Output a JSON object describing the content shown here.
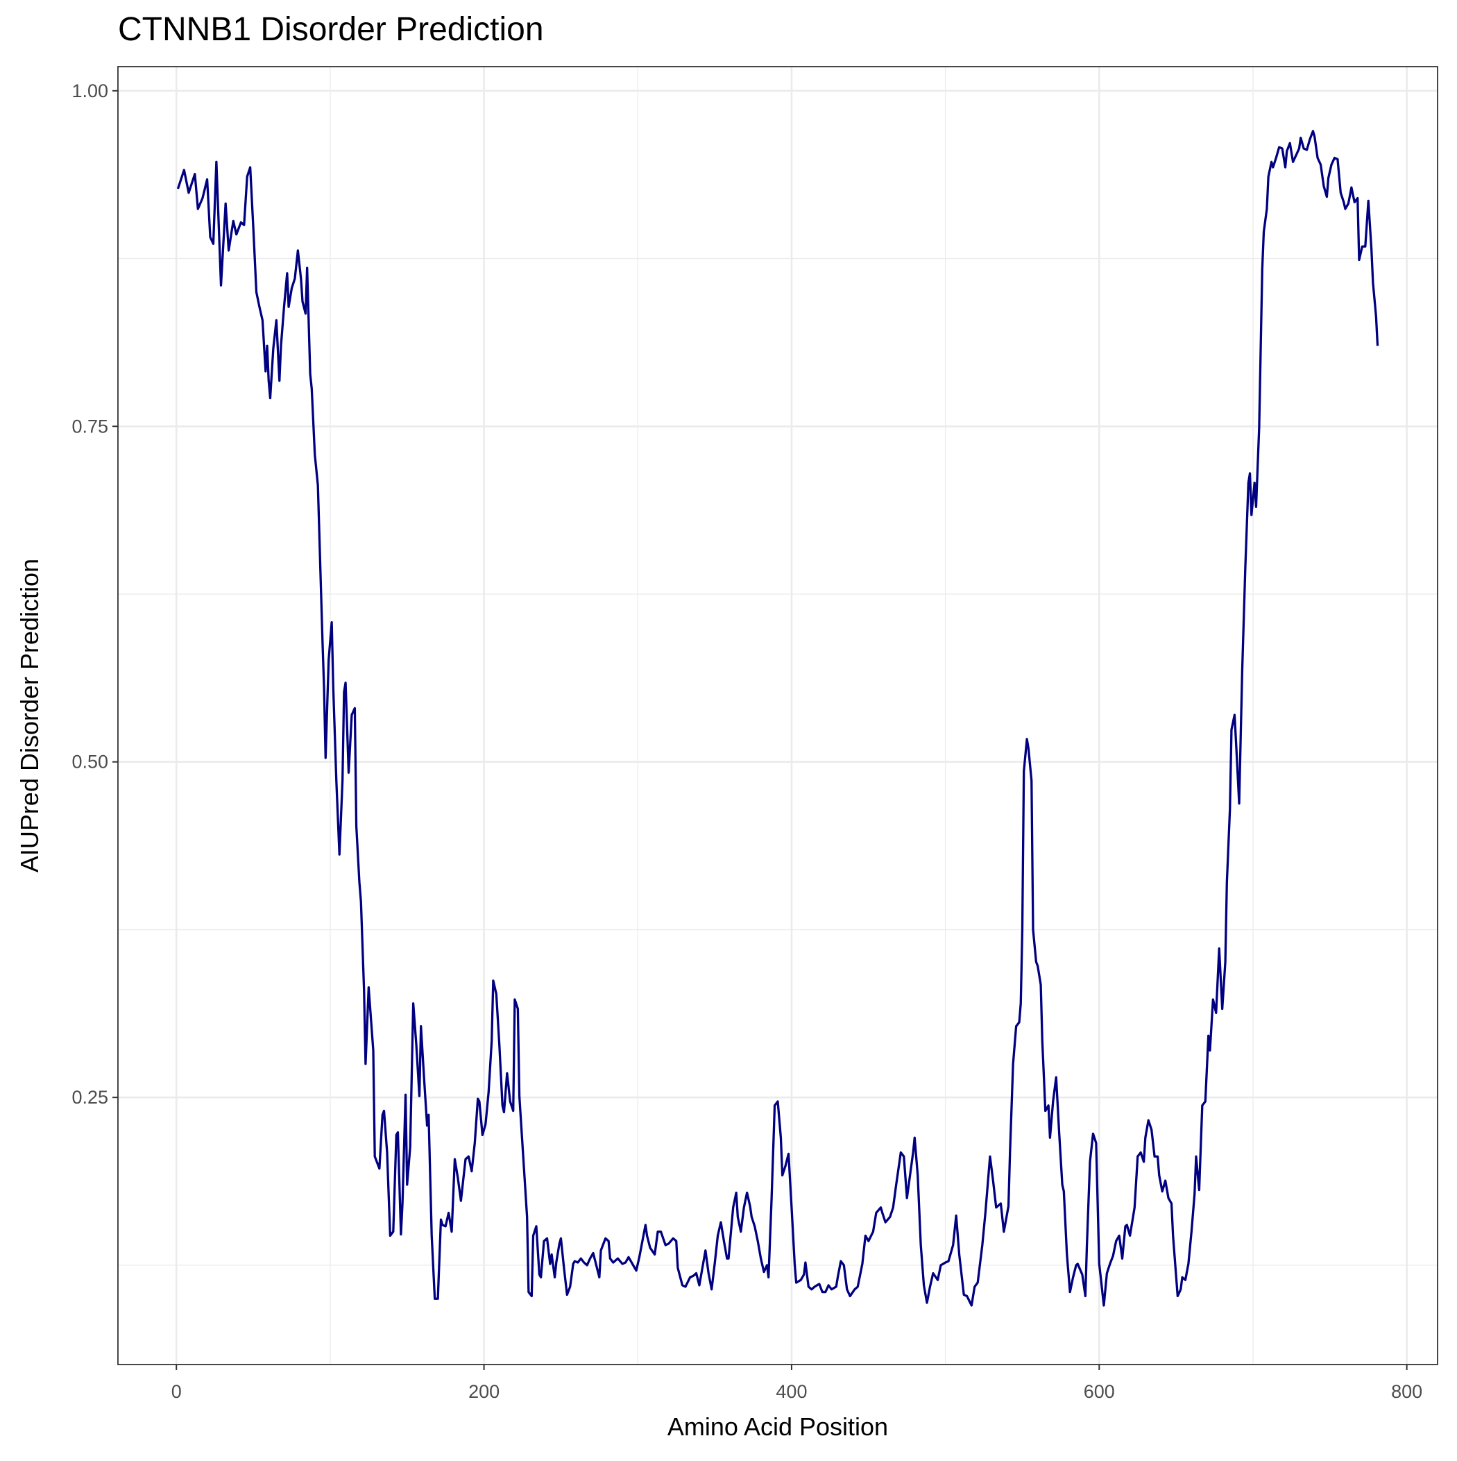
{
  "chart_data": {
    "type": "line",
    "title": "CTNNB1 Disorder Prediction",
    "x_label": "Amino Acid Position",
    "y_label": "AIUPred Disorder Prediction",
    "color": "#000080",
    "grid": true,
    "xlim": [
      -38,
      820
    ],
    "ylim": [
      0.051,
      1.018
    ],
    "xticks": [
      0,
      200,
      400,
      600,
      800
    ],
    "yticks": [
      {
        "value": 0.25,
        "label": "0.25"
      },
      {
        "value": 0.5,
        "label": "0.50"
      },
      {
        "value": 0.75,
        "label": "0.75"
      },
      {
        "value": 1.0,
        "label": "1.00"
      }
    ],
    "xminor": [
      100,
      300,
      500,
      700
    ],
    "yminor": [
      0.125,
      0.375,
      0.625,
      0.875
    ],
    "x": [
      1,
      5,
      8,
      12,
      14,
      17,
      20,
      22,
      24,
      26,
      29,
      32,
      34,
      37,
      39,
      42,
      44,
      46,
      48,
      50,
      52,
      54,
      56,
      58,
      59,
      60,
      61,
      63,
      65,
      67,
      68,
      70,
      72,
      73,
      75,
      77,
      79,
      81,
      82,
      84,
      85,
      87,
      88,
      90,
      92,
      95,
      96,
      97,
      99,
      101,
      102,
      104,
      106,
      108,
      109,
      110,
      112,
      114,
      116,
      117,
      119,
      120,
      122,
      123,
      125,
      128,
      129,
      132,
      134,
      135,
      137,
      139,
      141,
      143,
      144,
      146,
      147,
      149,
      150,
      152,
      154,
      156,
      158,
      159,
      161,
      163,
      164,
      166,
      168,
      170,
      172,
      173,
      175,
      177,
      179,
      181,
      183,
      185,
      188,
      190,
      192,
      194,
      196,
      197,
      199,
      201,
      203,
      205,
      206,
      208,
      210,
      212,
      213,
      215,
      217,
      219,
      220,
      222,
      223,
      225,
      228,
      229,
      231,
      232,
      234,
      236,
      237,
      239,
      241,
      243,
      244,
      246,
      247,
      249,
      250,
      252,
      254,
      256,
      258,
      259,
      261,
      263,
      265,
      267,
      269,
      271,
      273,
      275,
      276,
      279,
      281,
      282,
      284,
      287,
      290,
      292,
      294,
      296,
      299,
      301,
      303,
      305,
      306,
      308,
      311,
      313,
      315,
      318,
      320,
      323,
      325,
      326,
      329,
      331,
      334,
      336,
      338,
      340,
      342,
      344,
      346,
      348,
      350,
      352,
      354,
      356,
      358,
      359,
      362,
      364,
      365,
      367,
      369,
      371,
      373,
      374,
      376,
      378,
      380,
      382,
      384,
      385,
      387,
      389,
      391,
      393,
      394,
      396,
      398,
      400,
      402,
      403,
      406,
      408,
      409,
      411,
      413,
      415,
      418,
      420,
      422,
      424,
      426,
      429,
      430,
      432,
      434,
      436,
      438,
      441,
      443,
      446,
      448,
      450,
      453,
      455,
      458,
      459,
      461,
      464,
      466,
      468,
      471,
      473,
      475,
      477,
      479,
      480,
      482,
      484,
      486,
      488,
      490,
      492,
      495,
      497,
      500,
      502,
      505,
      507,
      509,
      512,
      514,
      517,
      519,
      521,
      524,
      526,
      529,
      531,
      533,
      536,
      538,
      541,
      542,
      544,
      546,
      548,
      549,
      550,
      551,
      553,
      554,
      556,
      557,
      559,
      560,
      562,
      563,
      565,
      567,
      568,
      570,
      572,
      574,
      576,
      577,
      579,
      581,
      583,
      585,
      586,
      589,
      591,
      592,
      594,
      596,
      598,
      600,
      601,
      603,
      605,
      607,
      609,
      611,
      613,
      615,
      617,
      618,
      620,
      623,
      625,
      627,
      629,
      630,
      632,
      634,
      636,
      638,
      639,
      641,
      643,
      645,
      647,
      648,
      651,
      653,
      654,
      656,
      658,
      660,
      662,
      663,
      665,
      667,
      669,
      671,
      672,
      674,
      676,
      678,
      680,
      682,
      683,
      685,
      686,
      688,
      689,
      691,
      693,
      695,
      697,
      698,
      699,
      701,
      702,
      704,
      706,
      707,
      709,
      710,
      712,
      713,
      715,
      717,
      719,
      721,
      722,
      724,
      726,
      728,
      730,
      731,
      733,
      735,
      737,
      739,
      740,
      742,
      744,
      746,
      748,
      749,
      751,
      753,
      755,
      757,
      759,
      760,
      762,
      764,
      766,
      768,
      769,
      771,
      773,
      775,
      777,
      778,
      780,
      781
    ],
    "values": [
      0.927,
      0.941,
      0.924,
      0.938,
      0.912,
      0.92,
      0.934,
      0.891,
      0.886,
      0.947,
      0.855,
      0.916,
      0.881,
      0.903,
      0.893,
      0.902,
      0.9,
      0.936,
      0.943,
      0.898,
      0.85,
      0.839,
      0.829,
      0.791,
      0.81,
      0.784,
      0.771,
      0.808,
      0.829,
      0.784,
      0.81,
      0.839,
      0.864,
      0.839,
      0.853,
      0.86,
      0.881,
      0.86,
      0.843,
      0.834,
      0.868,
      0.789,
      0.778,
      0.729,
      0.706,
      0.59,
      0.555,
      0.503,
      0.576,
      0.604,
      0.555,
      0.486,
      0.431,
      0.486,
      0.552,
      0.559,
      0.492,
      0.535,
      0.54,
      0.452,
      0.41,
      0.396,
      0.33,
      0.275,
      0.332,
      0.285,
      0.206,
      0.197,
      0.237,
      0.24,
      0.209,
      0.147,
      0.15,
      0.222,
      0.224,
      0.148,
      0.171,
      0.252,
      0.185,
      0.213,
      0.32,
      0.289,
      0.251,
      0.303,
      0.265,
      0.229,
      0.237,
      0.147,
      0.1,
      0.1,
      0.159,
      0.155,
      0.154,
      0.164,
      0.15,
      0.204,
      0.19,
      0.173,
      0.204,
      0.206,
      0.195,
      0.216,
      0.249,
      0.247,
      0.222,
      0.23,
      0.254,
      0.292,
      0.337,
      0.327,
      0.289,
      0.244,
      0.239,
      0.268,
      0.247,
      0.24,
      0.323,
      0.316,
      0.251,
      0.215,
      0.161,
      0.105,
      0.102,
      0.147,
      0.154,
      0.118,
      0.116,
      0.143,
      0.145,
      0.126,
      0.133,
      0.116,
      0.127,
      0.141,
      0.145,
      0.123,
      0.103,
      0.109,
      0.126,
      0.128,
      0.127,
      0.13,
      0.127,
      0.125,
      0.13,
      0.134,
      0.125,
      0.116,
      0.136,
      0.145,
      0.143,
      0.13,
      0.127,
      0.13,
      0.126,
      0.127,
      0.131,
      0.127,
      0.121,
      0.131,
      0.143,
      0.155,
      0.147,
      0.138,
      0.133,
      0.15,
      0.15,
      0.14,
      0.141,
      0.145,
      0.143,
      0.123,
      0.11,
      0.109,
      0.116,
      0.117,
      0.119,
      0.11,
      0.123,
      0.136,
      0.119,
      0.107,
      0.126,
      0.147,
      0.157,
      0.143,
      0.13,
      0.13,
      0.168,
      0.179,
      0.161,
      0.15,
      0.168,
      0.179,
      0.169,
      0.161,
      0.154,
      0.143,
      0.13,
      0.12,
      0.125,
      0.116,
      0.175,
      0.244,
      0.247,
      0.22,
      0.192,
      0.199,
      0.208,
      0.168,
      0.126,
      0.112,
      0.114,
      0.118,
      0.127,
      0.109,
      0.107,
      0.109,
      0.111,
      0.105,
      0.105,
      0.11,
      0.107,
      0.109,
      0.116,
      0.128,
      0.125,
      0.107,
      0.102,
      0.107,
      0.109,
      0.126,
      0.147,
      0.143,
      0.15,
      0.164,
      0.168,
      0.164,
      0.157,
      0.161,
      0.168,
      0.185,
      0.209,
      0.206,
      0.175,
      0.192,
      0.209,
      0.22,
      0.192,
      0.14,
      0.11,
      0.097,
      0.109,
      0.119,
      0.114,
      0.125,
      0.127,
      0.128,
      0.14,
      0.162,
      0.133,
      0.103,
      0.102,
      0.095,
      0.109,
      0.112,
      0.14,
      0.164,
      0.206,
      0.188,
      0.168,
      0.171,
      0.15,
      0.169,
      0.209,
      0.275,
      0.303,
      0.306,
      0.32,
      0.375,
      0.493,
      0.517,
      0.51,
      0.486,
      0.375,
      0.351,
      0.348,
      0.334,
      0.292,
      0.24,
      0.244,
      0.22,
      0.247,
      0.265,
      0.223,
      0.185,
      0.18,
      0.133,
      0.105,
      0.116,
      0.125,
      0.126,
      0.118,
      0.102,
      0.14,
      0.202,
      0.223,
      0.216,
      0.126,
      0.116,
      0.095,
      0.119,
      0.126,
      0.132,
      0.143,
      0.147,
      0.13,
      0.154,
      0.155,
      0.147,
      0.168,
      0.206,
      0.209,
      0.202,
      0.22,
      0.233,
      0.226,
      0.206,
      0.206,
      0.192,
      0.18,
      0.188,
      0.175,
      0.171,
      0.147,
      0.102,
      0.107,
      0.116,
      0.114,
      0.126,
      0.15,
      0.178,
      0.206,
      0.181,
      0.244,
      0.247,
      0.296,
      0.285,
      0.323,
      0.313,
      0.361,
      0.316,
      0.351,
      0.41,
      0.465,
      0.524,
      0.535,
      0.514,
      0.469,
      0.569,
      0.645,
      0.708,
      0.715,
      0.684,
      0.708,
      0.69,
      0.749,
      0.867,
      0.895,
      0.912,
      0.936,
      0.947,
      0.943,
      0.95,
      0.958,
      0.957,
      0.943,
      0.955,
      0.961,
      0.947,
      0.952,
      0.957,
      0.965,
      0.957,
      0.956,
      0.964,
      0.97,
      0.966,
      0.95,
      0.945,
      0.929,
      0.921,
      0.935,
      0.945,
      0.95,
      0.949,
      0.924,
      0.917,
      0.912,
      0.916,
      0.928,
      0.917,
      0.92,
      0.874,
      0.884,
      0.884,
      0.918,
      0.882,
      0.857,
      0.832,
      0.81
    ]
  }
}
